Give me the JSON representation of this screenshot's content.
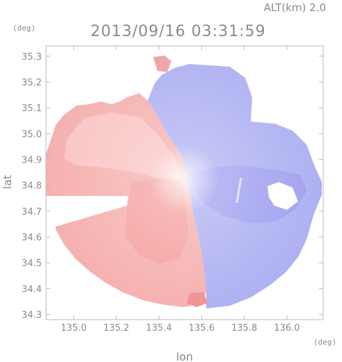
{
  "header": {
    "alt_label": "ALT(km) 2.0",
    "timestamp": "2013/09/16 03:31:59"
  },
  "chart_data": {
    "type": "heatmap",
    "title": "2013/09/16 03:31:59",
    "subtitle": "ALT(km) 2.0",
    "xlabel": "lon",
    "ylabel": "lat",
    "x_unit": "(deg)",
    "y_unit": "(deg)",
    "xlim": [
      134.87,
      136.17
    ],
    "ylim": [
      34.28,
      35.34
    ],
    "x_ticks": [
      135.0,
      135.2,
      135.4,
      135.6,
      135.8,
      136.0
    ],
    "x_tick_labels": [
      "135.0",
      "135.2",
      "135.4",
      "135.6",
      "135.8",
      "136.0"
    ],
    "y_ticks": [
      34.3,
      34.4,
      34.5,
      34.6,
      34.7,
      34.8,
      34.9,
      35.0,
      35.1,
      35.2,
      35.3
    ],
    "y_tick_labels": [
      "34.3",
      "34.4",
      "34.5",
      "34.6",
      "34.7",
      "34.8",
      "34.9",
      "35.0",
      "35.1",
      "35.2",
      "35.3"
    ],
    "grid": false,
    "radar_center": {
      "lon": 135.52,
      "lat": 34.82
    },
    "colors": {
      "positive": "#f4a6a6",
      "negative": "#a8aaf0",
      "neutral": "#f6f6f8"
    },
    "regions": [
      {
        "name": "west-red-sector",
        "sign": "positive"
      },
      {
        "name": "east-blue-sector",
        "sign": "negative"
      }
    ]
  }
}
